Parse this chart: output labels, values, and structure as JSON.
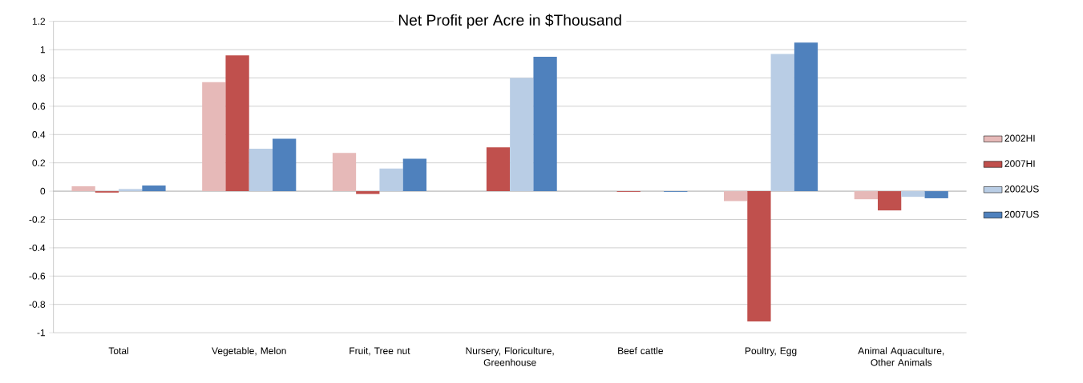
{
  "chart_data": {
    "type": "bar",
    "title": "Net Profit per Acre in $Thousand",
    "categories": [
      "Total",
      "Vegetable, Melon",
      "Fruit, Tree nut",
      "Nursery, Floriculture, Greenhouse",
      "Beef cattle",
      "Poultry, Egg",
      "Animal Aquaculture, Other Animals"
    ],
    "series": [
      {
        "name": "2002HI",
        "color": "#e6b9b8",
        "values": [
          0.035,
          0.77,
          0.27,
          null,
          null,
          -0.07,
          -0.057
        ]
      },
      {
        "name": "2007HI",
        "color": "#c0504d",
        "values": [
          -0.01,
          0.96,
          -0.02,
          0.31,
          -0.005,
          -0.92,
          -0.136
        ]
      },
      {
        "name": "2002US",
        "color": "#b9cde5",
        "values": [
          0.015,
          0.3,
          0.16,
          0.8,
          null,
          0.97,
          -0.04
        ]
      },
      {
        "name": "2007US",
        "color": "#4f81bd",
        "values": [
          0.04,
          0.37,
          0.23,
          0.95,
          -0.005,
          1.05,
          -0.05
        ]
      }
    ],
    "ylim": [
      -1,
      1.2
    ],
    "yticks": [
      -1,
      -0.8,
      -0.6,
      -0.4,
      -0.2,
      0,
      0.2,
      0.4,
      0.6,
      0.8,
      1,
      1.2
    ],
    "grid": "y",
    "legend": "right"
  }
}
